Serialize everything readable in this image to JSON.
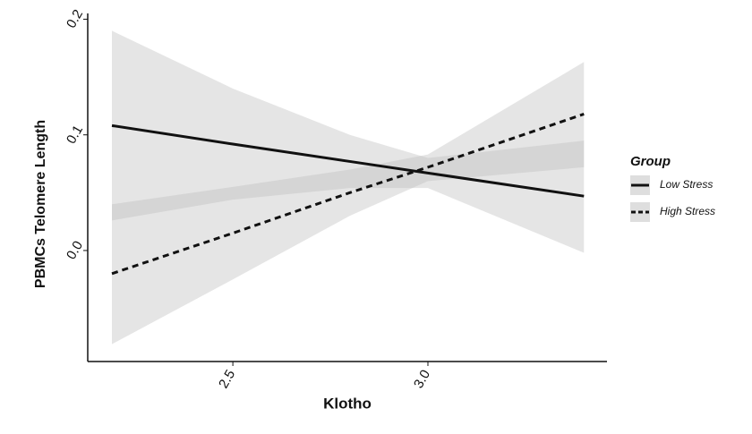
{
  "chart_data": {
    "type": "line",
    "x_label": "Klotho",
    "y_label": "PBMCs Telomere Length",
    "x": [
      2.19,
      2.5,
      2.8,
      3.0,
      3.4
    ],
    "series": [
      {
        "name": "Low Stress",
        "color": "#111111",
        "linestyle": "solid",
        "values": [
          0.108,
          0.092,
          0.077,
          0.067,
          0.047
        ],
        "lower": [
          0.026,
          0.044,
          0.054,
          0.054,
          -0.002
        ],
        "upper": [
          0.19,
          0.14,
          0.1,
          0.08,
          0.095
        ]
      },
      {
        "name": "High Stress",
        "color": "#111111",
        "linestyle": "dashed",
        "values": [
          -0.02,
          0.015,
          0.05,
          0.072,
          0.118
        ],
        "lower": [
          -0.081,
          -0.025,
          0.03,
          0.06,
          0.072
        ],
        "upper": [
          0.04,
          0.055,
          0.07,
          0.083,
          0.163
        ]
      }
    ],
    "band_color": "#bdbdbd",
    "xlim": [
      2.128,
      3.459
    ],
    "ylim": [
      -0.096,
      0.205
    ],
    "xticks": [
      2.5,
      {
        "value": 3,
        "label": "3.0"
      }
    ],
    "yticks": [
      {
        "value": 0,
        "label": "0.0"
      },
      0.1,
      0.2
    ],
    "legend_title": "Group",
    "legend_position": "right",
    "grid": false
  }
}
